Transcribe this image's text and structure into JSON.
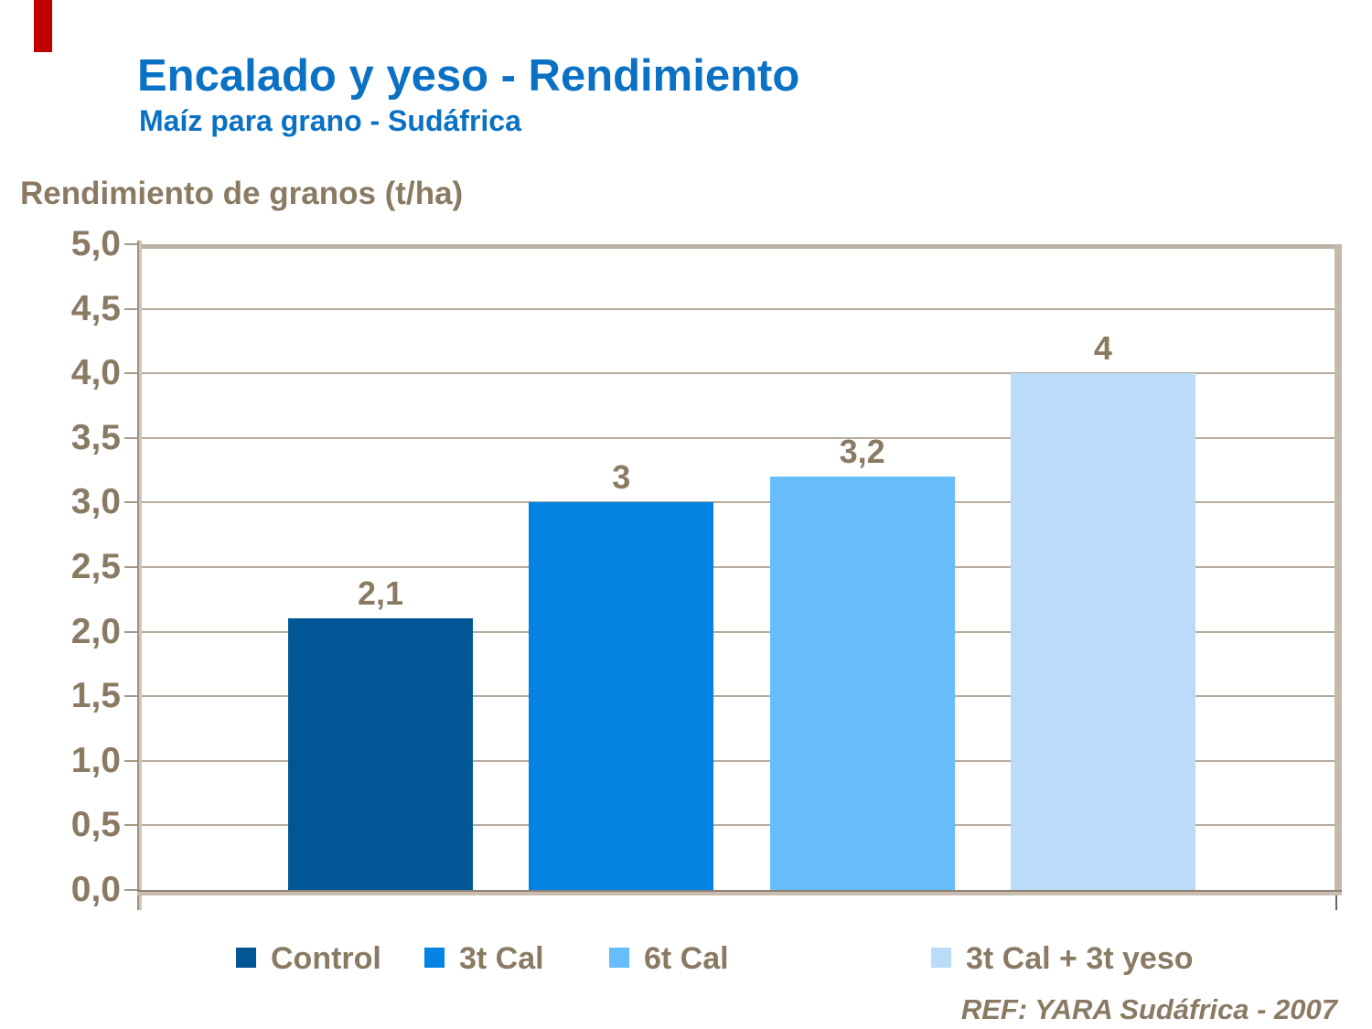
{
  "slide": {
    "title": "Encalado y yeso - Rendimiento",
    "subtitle": "Maíz para grano - Sudáfrica",
    "footer_ref": "REF: YARA Sudáfrica - 2007",
    "accent_bar_color": "#c00000",
    "title_color": "#0a71c4",
    "text_color": "#8a7a63"
  },
  "chart_data": {
    "type": "bar",
    "title": "Encalado y yeso - Rendimiento",
    "subtitle": "Maíz para grano - Sudáfrica",
    "ylabel": "Rendimiento de granos (t/ha)",
    "xlabel": "",
    "ylim": [
      0,
      5
    ],
    "ytick_step": 0.5,
    "ytick_labels": [
      "0,0",
      "0,5",
      "1,0",
      "1,5",
      "2,0",
      "2,5",
      "3,0",
      "3,5",
      "4,0",
      "4,5",
      "5,0"
    ],
    "grid": true,
    "legend_position": "bottom",
    "categories": [
      "Control",
      "3t Cal",
      "6t Cal",
      "3t Cal + 3t yeso"
    ],
    "values": [
      2.1,
      3,
      3.2,
      4
    ],
    "value_labels": [
      "2,1",
      "3",
      "3,2",
      "4"
    ],
    "bar_colors": [
      "#015795",
      "#0583e3",
      "#67bcfa",
      "#badcf9"
    ]
  },
  "colors": {
    "gridline": "#b6ab9d",
    "axis_dark": "#9c8f81",
    "frame_wall": "#c5b9ac"
  }
}
